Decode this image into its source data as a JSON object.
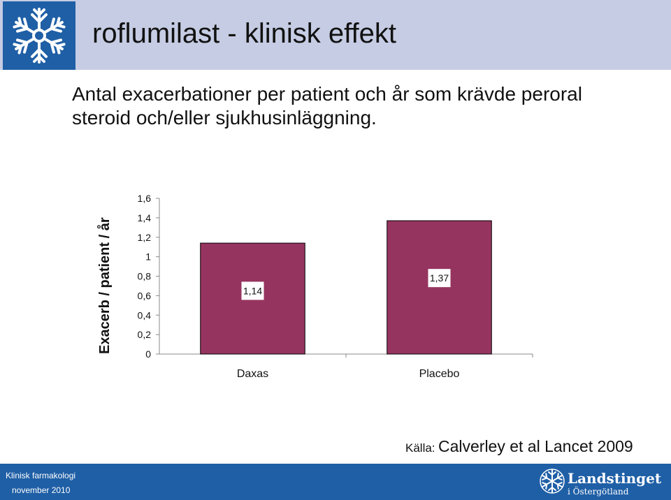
{
  "slide": {
    "title": "roflumilast - klinisk effekt",
    "subtitle": "Antal exacerbationer per patient och år som krävde peroral steroid och/eller sjukhusinläggning.",
    "source_label": "Källa:",
    "source_text": "Calverley et al Lancet 2009"
  },
  "footer": {
    "department": "Klinisk farmakologi",
    "date": "november 2010",
    "org_name": "Landstinget",
    "org_region": "i Östergötland"
  },
  "icons": {
    "header_logo": "snowflake-logo-icon",
    "footer_logo": "snowflake-logo-icon"
  },
  "colors": {
    "header_band": "#c5cce3",
    "logo_blue": "#1f5fa6",
    "bar": "#963460",
    "footer": "#1f5fa6"
  },
  "chart_data": {
    "type": "bar",
    "categories": [
      "Daxas",
      "Placebo"
    ],
    "values": [
      1.14,
      1.37
    ],
    "data_labels": [
      "1,14",
      "1,37"
    ],
    "ylabel": "Exacerb / patient / år",
    "ylim": [
      0,
      1.6
    ],
    "yticks": [
      0,
      0.2,
      0.4,
      0.6,
      0.8,
      1,
      1.2,
      1.4,
      1.6
    ],
    "ytick_labels": [
      "0",
      "0,2",
      "0,4",
      "0,6",
      "0,8",
      "1",
      "1,2",
      "1,4",
      "1,6"
    ],
    "grid": false,
    "legend": "none",
    "bar_color": "#963460"
  }
}
